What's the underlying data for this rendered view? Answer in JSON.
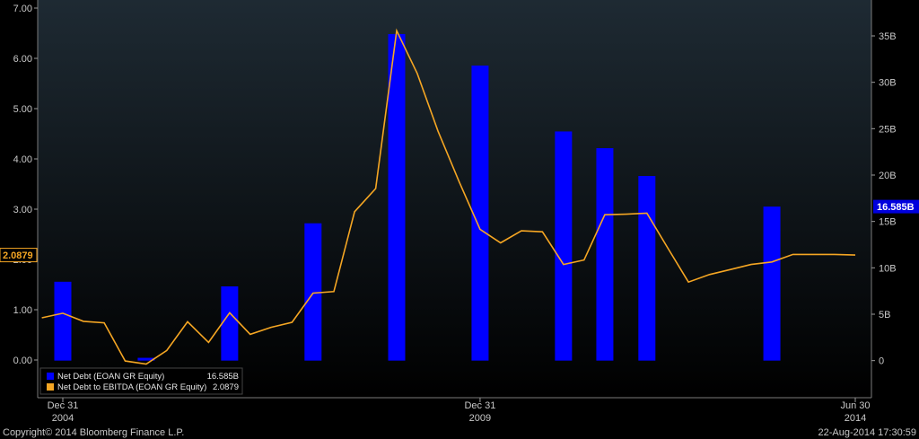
{
  "chart_data": {
    "type": "bar",
    "x": [
      "2004-12-31",
      "2005-06-30",
      "2005-12-31",
      "2006-06-30",
      "2006-12-31",
      "2007-06-30",
      "2007-12-31",
      "2008-06-30",
      "2008-12-31",
      "2009-06-30",
      "2009-12-31",
      "2010-06-30",
      "2010-12-31",
      "2011-06-30",
      "2011-12-31",
      "2012-06-30",
      "2012-12-31",
      "2013-06-30",
      "2013-12-31",
      "2014-06-30"
    ],
    "series": [
      {
        "name": "Net Debt (EOAN GR Equity)",
        "type": "bar",
        "axis": "right",
        "color": "#0000ff",
        "x": [
          "2004-12-31",
          "2005-12-31",
          "2006-12-31",
          "2007-12-31",
          "2008-12-31",
          "2009-12-31",
          "2010-12-31",
          "2011-06-30",
          "2011-12-31",
          "2013-06-30"
        ],
        "values_billions": [
          8.5,
          0.3,
          8.0,
          14.8,
          35.2,
          31.8,
          24.7,
          22.9,
          19.9,
          16.6
        ]
      },
      {
        "name": "Net Debt to EBITDA (EOAN GR Equity)",
        "type": "line",
        "axis": "left",
        "color": "#f5a623",
        "x": [
          "2004-09-30",
          "2004-12-31",
          "2005-03-31",
          "2005-06-30",
          "2005-09-30",
          "2005-12-31",
          "2006-03-31",
          "2006-06-30",
          "2006-09-30",
          "2006-12-31",
          "2007-03-31",
          "2007-06-30",
          "2007-09-30",
          "2007-12-31",
          "2008-03-31",
          "2008-06-30",
          "2008-09-30",
          "2008-12-31",
          "2009-03-31",
          "2009-06-30",
          "2009-09-30",
          "2009-12-31",
          "2010-03-31",
          "2010-06-30",
          "2010-09-30",
          "2010-12-31",
          "2011-03-31",
          "2011-06-30",
          "2011-09-30",
          "2011-12-31",
          "2012-03-31",
          "2012-06-30",
          "2012-09-30",
          "2012-12-31",
          "2013-03-31",
          "2013-06-30",
          "2013-09-30",
          "2014-03-31",
          "2014-06-30"
        ],
        "values": [
          0.84,
          0.93,
          0.77,
          0.74,
          -0.02,
          -0.08,
          0.19,
          0.76,
          0.35,
          0.94,
          0.51,
          0.65,
          0.75,
          1.33,
          1.36,
          2.95,
          3.41,
          6.55,
          5.7,
          4.55,
          3.55,
          2.6,
          2.33,
          2.57,
          2.55,
          1.9,
          1.99,
          2.89,
          2.9,
          2.92,
          2.23,
          1.55,
          1.7,
          1.8,
          1.9,
          1.95,
          2.1,
          2.1,
          2.0879
        ]
      }
    ],
    "y_left": {
      "ylim": [
        -0.75,
        7.0
      ],
      "ticks": [
        "7.00",
        "6.00",
        "5.00",
        "4.00",
        "3.00",
        "2.00",
        "1.00",
        "0.00"
      ],
      "tick_values": [
        7,
        6,
        5,
        4,
        3,
        2,
        1,
        0
      ]
    },
    "y_right": {
      "ylim": [
        -4,
        38
      ],
      "ticks": [
        "35B",
        "30B",
        "25B",
        "20B",
        "15B",
        "10B",
        "5B",
        "0"
      ],
      "tick_values": [
        35,
        30,
        25,
        20,
        15,
        10,
        5,
        0
      ]
    },
    "x_ticks": [
      {
        "date": "2004-12-31",
        "line1": "Dec 31",
        "line2": "2004"
      },
      {
        "date": "2009-12-31",
        "line1": "Dec 31",
        "line2": "2009"
      },
      {
        "date": "2014-06-30",
        "line1": "Jun 30",
        "line2": "2014"
      }
    ],
    "last_value_tags": {
      "left": "2.0879",
      "right": "16.585B"
    },
    "legend": [
      {
        "label": "Net Debt (EOAN GR Equity)",
        "value": "16.585B",
        "color": "#0000ff"
      },
      {
        "label": "Net Debt to EBITDA (EOAN GR Equity)",
        "value": "2.0879",
        "color": "#f5a623"
      }
    ],
    "legend_position": "bottom-left",
    "grid": false
  },
  "footer": {
    "copyright": "Copyright© 2014 Bloomberg Finance L.P.",
    "timestamp": "22-Aug-2014 17:30:59"
  }
}
